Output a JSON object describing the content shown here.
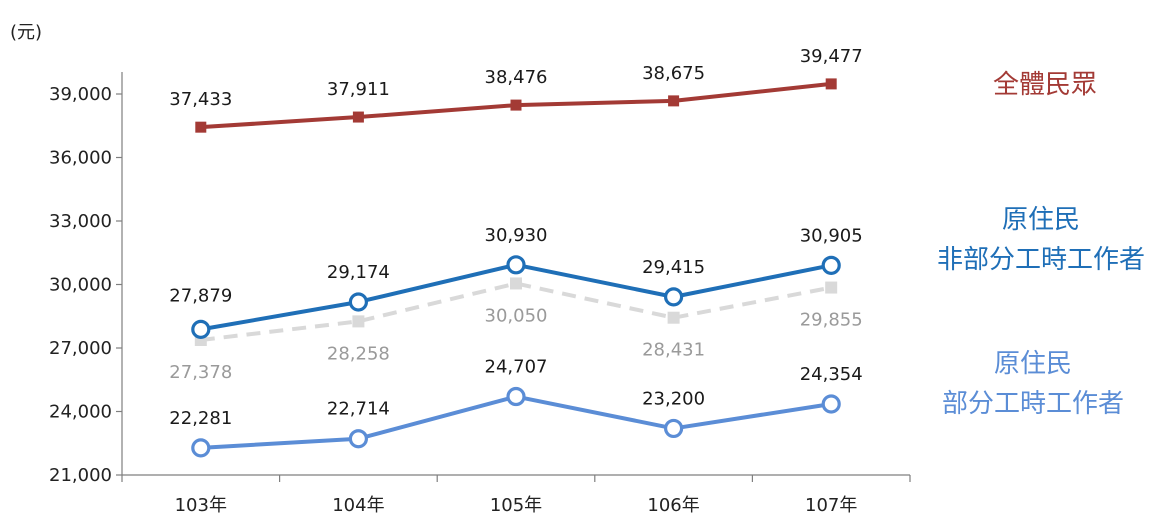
{
  "chart_data": {
    "type": "line",
    "unit_label": "(元)",
    "categories": [
      "103年",
      "104年",
      "105年",
      "106年",
      "107年"
    ],
    "ylim": [
      21000,
      39000
    ],
    "yticks": [
      21000,
      24000,
      27000,
      30000,
      33000,
      36000,
      39000
    ],
    "ytick_labels": [
      "21,000",
      "24,000",
      "27,000",
      "30,000",
      "33,000",
      "36,000",
      "39,000"
    ],
    "grid": false,
    "series": [
      {
        "key": "all",
        "legend": [
          "全體民眾"
        ],
        "values": [
          37433,
          37911,
          38476,
          38675,
          39477
        ],
        "labels": [
          "37,433",
          "37,911",
          "38,476",
          "38,675",
          "39,477"
        ],
        "color": "#A33A35",
        "marker": "square",
        "dashed": false
      },
      {
        "key": "gray",
        "legend": [],
        "values": [
          27378,
          28258,
          30050,
          28431,
          29855
        ],
        "labels": [
          "27,378",
          "28,258",
          "30,050",
          "28,431",
          "29,855"
        ],
        "color": "#D9D9D9",
        "label_color": "#9A9A9A",
        "marker": "square",
        "dashed": true
      },
      {
        "key": "nonpart",
        "legend": [
          "原住民",
          "非部分工時工作者"
        ],
        "values": [
          27879,
          29174,
          30930,
          29415,
          30905
        ],
        "labels": [
          "27,879",
          "29,174",
          "30,930",
          "29,415",
          "30,905"
        ],
        "color": "#1F6FB7",
        "marker": "circle",
        "dashed": false
      },
      {
        "key": "part",
        "legend": [
          "原住民",
          "部分工時工作者"
        ],
        "values": [
          22281,
          22714,
          24707,
          23200,
          24354
        ],
        "labels": [
          "22,281",
          "22,714",
          "24,707",
          "23,200",
          "24,354"
        ],
        "color": "#5B8DD6",
        "marker": "circle",
        "dashed": false
      }
    ]
  }
}
